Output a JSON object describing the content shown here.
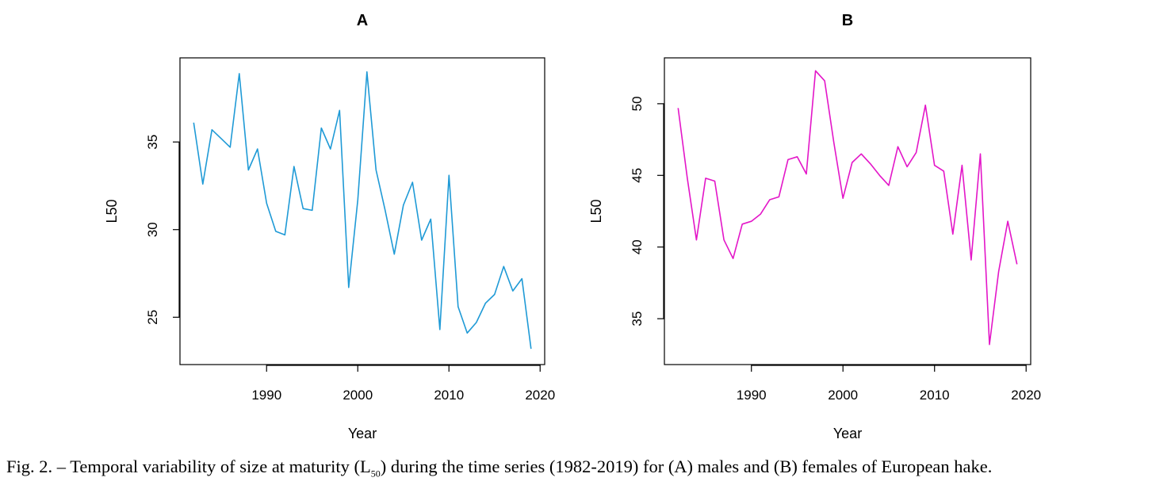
{
  "caption": {
    "prefix": "Fig. 2. – Temporal variability of size at maturity (L",
    "subscript": "50",
    "suffix": ") during the time series (1982-2019) for (A) males and (B) females of European hake."
  },
  "chart_data": [
    {
      "type": "line",
      "title": "A",
      "xlabel": "Year",
      "ylabel": "L50",
      "color": "#1f9ad6",
      "xlim": [
        1980.5,
        2020.5
      ],
      "ylim": [
        22.3,
        39.8
      ],
      "xticks": [
        1990,
        2000,
        2010,
        2020
      ],
      "yticks": [
        25,
        30,
        35
      ],
      "x": [
        1982,
        1983,
        1984,
        1985,
        1986,
        1987,
        1988,
        1989,
        1990,
        1991,
        1992,
        1993,
        1994,
        1995,
        1996,
        1997,
        1998,
        1999,
        2000,
        2001,
        2002,
        2003,
        2004,
        2005,
        2006,
        2007,
        2008,
        2009,
        2010,
        2011,
        2012,
        2013,
        2014,
        2015,
        2016,
        2017,
        2018,
        2019
      ],
      "y": [
        36.1,
        32.6,
        35.7,
        35.2,
        34.7,
        38.9,
        33.4,
        34.6,
        31.5,
        29.9,
        29.7,
        33.6,
        31.2,
        31.1,
        35.8,
        34.6,
        36.8,
        26.7,
        31.7,
        39.0,
        33.4,
        31.1,
        28.6,
        31.4,
        32.7,
        29.4,
        30.6,
        24.3,
        33.1,
        25.6,
        24.1,
        24.7,
        25.8,
        26.3,
        27.9,
        26.5,
        27.2,
        23.2
      ]
    },
    {
      "type": "line",
      "title": "B",
      "xlabel": "Year",
      "ylabel": "L50",
      "color": "#e316c8",
      "xlim": [
        1980.5,
        2020.5
      ],
      "ylim": [
        31.8,
        53.2
      ],
      "xticks": [
        1990,
        2000,
        2010,
        2020
      ],
      "yticks": [
        35,
        40,
        45,
        50
      ],
      "x": [
        1982,
        1983,
        1984,
        1985,
        1986,
        1987,
        1988,
        1989,
        1990,
        1991,
        1992,
        1993,
        1994,
        1995,
        1996,
        1997,
        1998,
        1999,
        2000,
        2001,
        2002,
        2003,
        2004,
        2005,
        2006,
        2007,
        2008,
        2009,
        2010,
        2011,
        2012,
        2013,
        2014,
        2015,
        2016,
        2017,
        2018,
        2019
      ],
      "y": [
        49.7,
        44.8,
        40.5,
        44.8,
        44.6,
        40.5,
        39.2,
        41.6,
        41.8,
        42.3,
        43.3,
        43.5,
        46.1,
        46.3,
        45.1,
        52.3,
        51.6,
        47.3,
        43.4,
        45.9,
        46.5,
        45.8,
        45.0,
        44.3,
        47.0,
        45.6,
        46.6,
        49.9,
        45.7,
        45.3,
        40.9,
        45.7,
        39.1,
        46.5,
        33.2,
        38.3,
        41.8,
        38.8
      ]
    }
  ]
}
